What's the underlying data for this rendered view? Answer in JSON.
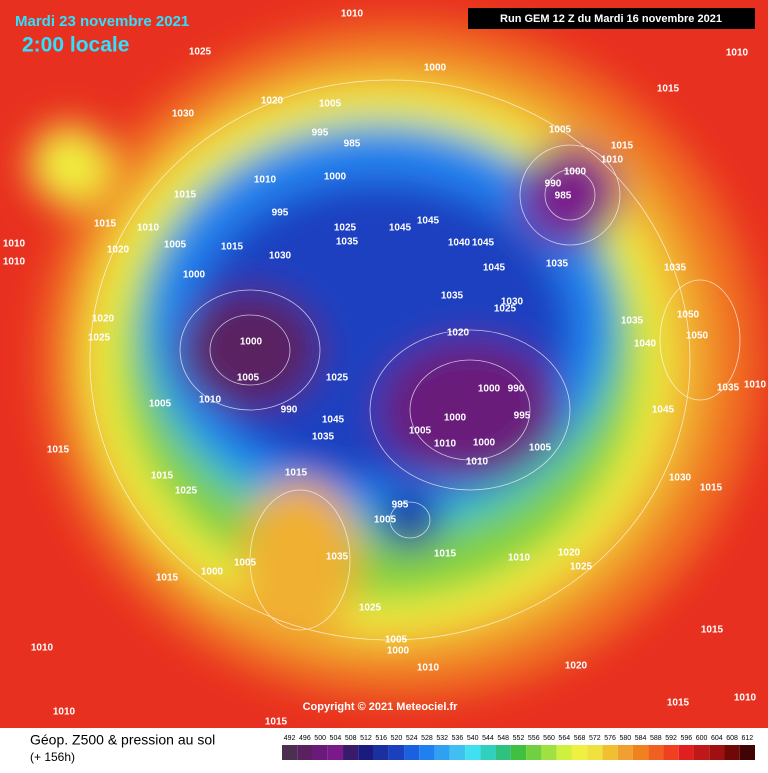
{
  "header": {
    "date": "Mardi 23 novembre 2021",
    "time": "2:00 locale",
    "run": "Run GEM 12 Z du Mardi 16 novembre 2021"
  },
  "copyright": "Copyright © 2021 Meteociel.fr",
  "legend": {
    "title": "Géop. Z500 & pression au sol",
    "subtitle": "(+ 156h)",
    "levels": [
      492,
      496,
      500,
      504,
      508,
      512,
      516,
      520,
      524,
      528,
      532,
      536,
      540,
      544,
      548,
      552,
      556,
      560,
      564,
      568,
      572,
      576,
      580,
      584,
      588,
      592,
      596,
      600,
      604,
      608,
      612
    ],
    "colors": [
      "#4b3050",
      "#5a2060",
      "#6a1a7a",
      "#7a1a8a",
      "#3a1a6a",
      "#1a1a80",
      "#1a30a0",
      "#1a40c0",
      "#1a60e0",
      "#2080f0",
      "#30a0f0",
      "#40c0f0",
      "#40e0f0",
      "#30d0c0",
      "#30c080",
      "#40c040",
      "#70d040",
      "#a0e040",
      "#d0f040",
      "#f0f040",
      "#f0e040",
      "#f0c030",
      "#f0a030",
      "#f08020",
      "#f06020",
      "#f04020",
      "#e02020",
      "#c01818",
      "#a01010",
      "#700808",
      "#400404"
    ]
  },
  "isobar_labels": [
    "1010",
    "1025",
    "1030",
    "1020",
    "1000",
    "1005",
    "1005",
    "1015",
    "1015",
    "1010",
    "995",
    "985",
    "1010",
    "1015",
    "1000",
    "995",
    "1025",
    "1035",
    "1045",
    "1045",
    "1040",
    "1045",
    "1045",
    "1035",
    "1000",
    "990",
    "985",
    "1010",
    "1015",
    "1010",
    "1020",
    "1005",
    "1015",
    "1030",
    "1000",
    "1035",
    "1035",
    "1030",
    "1025",
    "1035",
    "1050",
    "1050",
    "1040",
    "1020",
    "1000",
    "1005",
    "1025",
    "1000",
    "990",
    "1010",
    "1000",
    "995",
    "1005",
    "1010",
    "1000",
    "1005",
    "1010",
    "990",
    "1045",
    "1035",
    "1015",
    "1015",
    "1025",
    "1015",
    "1005",
    "1010",
    "1010",
    "1025",
    "1020",
    "995",
    "1005",
    "1015",
    "1010",
    "1020",
    "1025",
    "1035",
    "1000",
    "1015",
    "1005",
    "1025",
    "1005",
    "1000",
    "1010",
    "1020",
    "1010",
    "1010",
    "1015",
    "1030",
    "1015",
    "1045",
    "1035",
    "1010",
    "1015",
    "1015",
    "1010"
  ]
}
